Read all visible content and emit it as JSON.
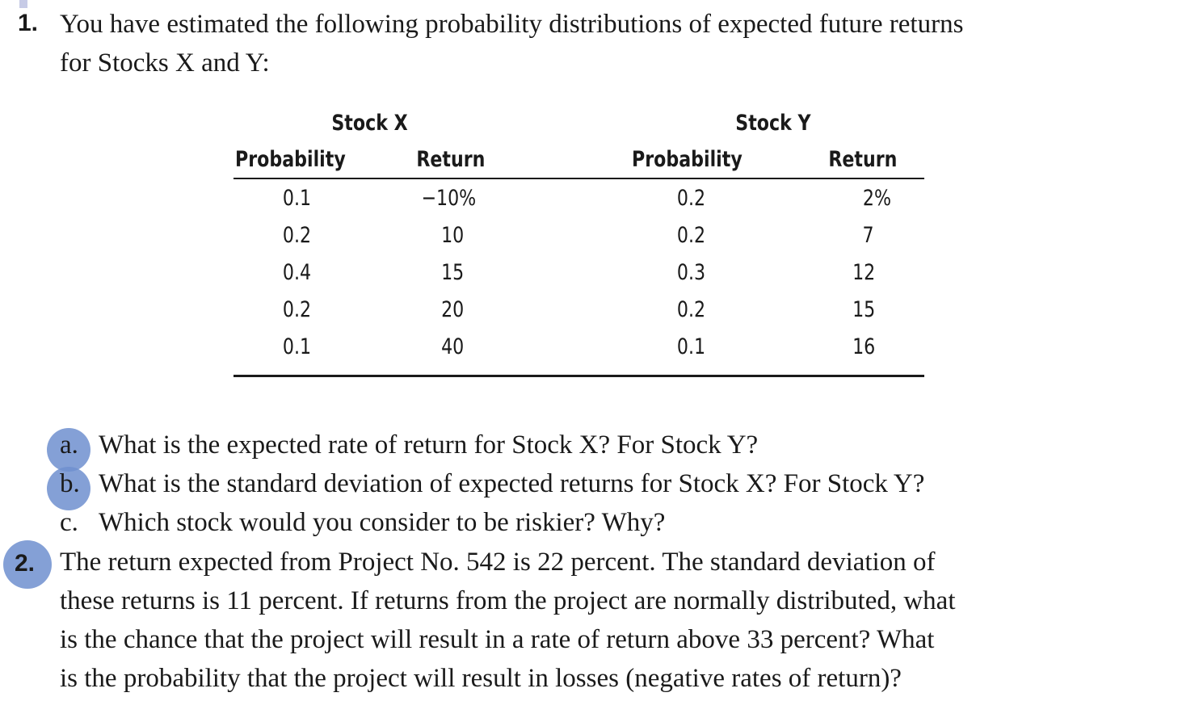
{
  "question1": {
    "number": "1.",
    "line1": "You have estimated the following probability distributions of expected future returns",
    "line2": "for Stocks X and Y:"
  },
  "table": {
    "stock_x": {
      "title": "Stock X",
      "col_prob": "Probability",
      "col_return": "Return",
      "rows": [
        {
          "prob": "0.1",
          "ret": "−10%"
        },
        {
          "prob": "0.2",
          "ret": "10"
        },
        {
          "prob": "0.4",
          "ret": "15"
        },
        {
          "prob": "0.2",
          "ret": "20"
        },
        {
          "prob": "0.1",
          "ret": "40"
        }
      ]
    },
    "stock_y": {
      "title": "Stock Y",
      "col_prob": "Probability",
      "col_return": "Return",
      "rows": [
        {
          "prob": "0.2",
          "ret": "2%"
        },
        {
          "prob": "0.2",
          "ret": "7"
        },
        {
          "prob": "0.3",
          "ret": "12"
        },
        {
          "prob": "0.2",
          "ret": "15"
        },
        {
          "prob": "0.1",
          "ret": "16"
        }
      ]
    }
  },
  "parts": {
    "a": {
      "label": "a.",
      "text": "What is the expected rate of return for Stock X? For Stock Y?"
    },
    "b": {
      "label": "b.",
      "text": "What is the standard deviation of expected returns for Stock X? For Stock Y?"
    },
    "c": {
      "label": "c.",
      "text": "Which stock would you consider to be riskier? Why?"
    }
  },
  "question2": {
    "number": "2.",
    "line1": "The return expected from Project No. 542 is 22 percent. The standard deviation of",
    "line2": "these returns is 11 percent. If returns from the project are normally distributed, what",
    "line3": "is the chance that the project will result in a rate of return above 33 percent? What",
    "line4": "is the probability that the project will result in losses (negative rates of return)?"
  },
  "colors": {
    "highlight_circle": "#6e8fcf",
    "text": "#1a1a1a"
  }
}
